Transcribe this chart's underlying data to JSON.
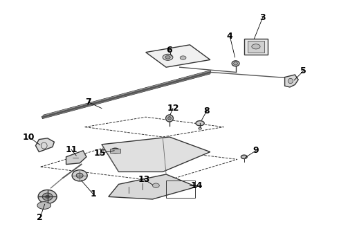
{
  "bg_color": "#ffffff",
  "line_color": "#333333",
  "label_color": "#000000",
  "label_fontsize": 9,
  "label_fontweight": "bold",
  "label_positions": {
    "3": [
      0.775,
      0.93,
      0.75,
      0.845
    ],
    "4": [
      0.678,
      0.855,
      0.693,
      0.77
    ],
    "5": [
      0.895,
      0.715,
      0.868,
      0.678
    ],
    "6": [
      0.5,
      0.8,
      0.505,
      0.775
    ],
    "7": [
      0.26,
      0.59,
      0.3,
      0.565
    ],
    "8": [
      0.61,
      0.555,
      0.595,
      0.518
    ],
    "9": [
      0.755,
      0.395,
      0.724,
      0.368
    ],
    "10": [
      0.085,
      0.45,
      0.118,
      0.418
    ],
    "11": [
      0.21,
      0.4,
      0.225,
      0.375
    ],
    "12": [
      0.51,
      0.565,
      0.502,
      0.539
    ],
    "13": [
      0.425,
      0.28,
      0.45,
      0.258
    ],
    "14": [
      0.58,
      0.255,
      0.56,
      0.255
    ],
    "15": [
      0.295,
      0.385,
      0.337,
      0.395
    ],
    "1": [
      0.275,
      0.22,
      0.24,
      0.275
    ],
    "2": [
      0.118,
      0.125,
      0.132,
      0.18
    ]
  }
}
